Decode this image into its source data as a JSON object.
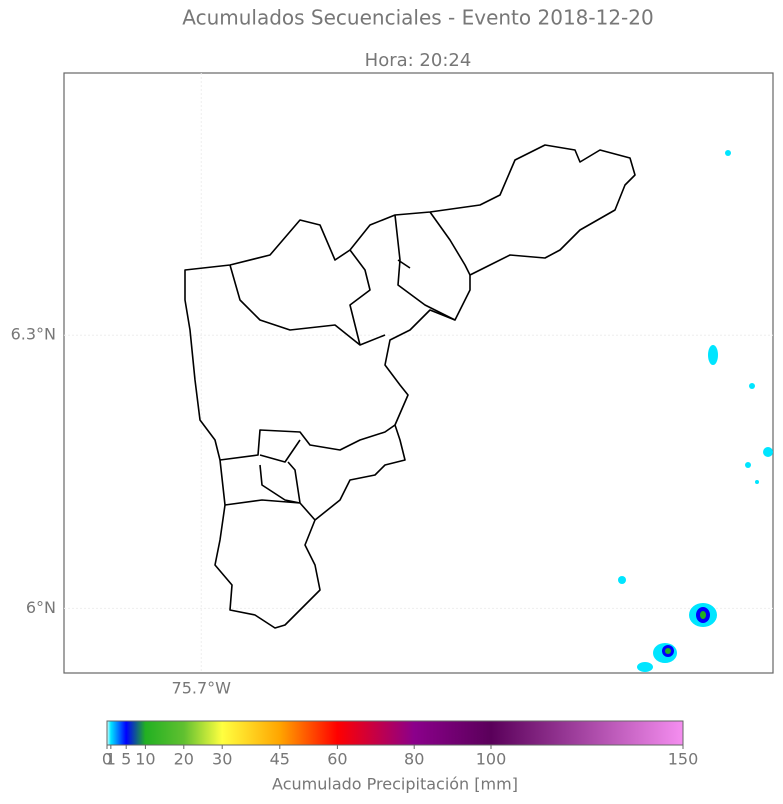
{
  "map": {
    "title": "Acumulados Secuenciales - Evento 2018-12-20",
    "subtitle": "Hora: 20:24",
    "lat_range": [
      5.929,
      6.588
    ],
    "lon_range": [
      -75.851,
      -75.071
    ],
    "lat_ticks": [
      {
        "value": 6.3,
        "label": "6.3°N"
      },
      {
        "value": 6,
        "label": "6°N"
      }
    ],
    "lon_ticks": [
      {
        "value": -75.7,
        "label": "75.7°W"
      }
    ],
    "grid": true,
    "colorbar": {
      "label": "Acumulado Precipitación [mm]",
      "range": [
        0,
        150
      ],
      "ticks": [
        0,
        1,
        5,
        10,
        20,
        30,
        45,
        60,
        80,
        100,
        150
      ],
      "tick_colors": [
        "#e0ffff",
        "#00e5ff",
        "#0000ff",
        "#22b022",
        "#60c030",
        "#ffff40",
        "#ffa500",
        "#ff0000",
        "#8b008b",
        "#5a005a",
        "#f58ef0"
      ]
    }
  }
}
